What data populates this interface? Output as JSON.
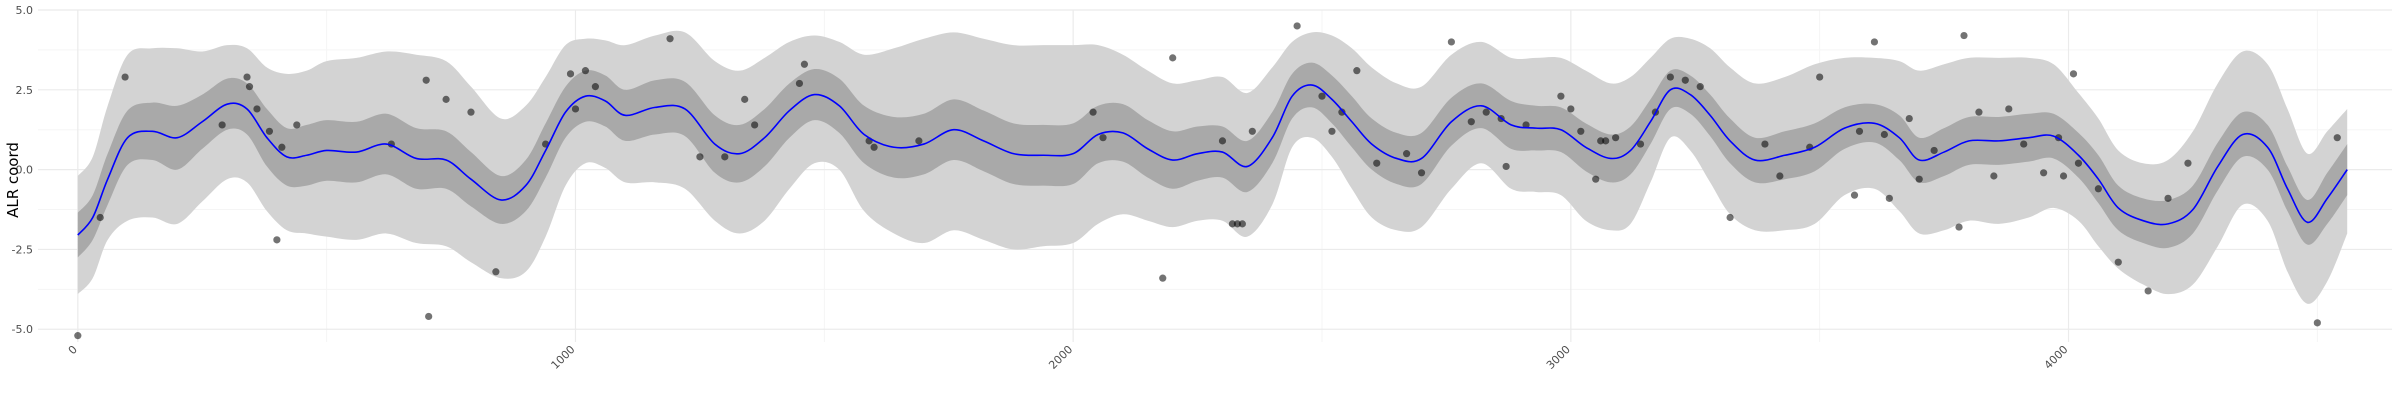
{
  "chart_data": {
    "type": "line",
    "title": "",
    "xlabel": "",
    "ylabel": "ALR coord",
    "xlim": [
      -80,
      4650
    ],
    "ylim": [
      -5.4,
      5.0
    ],
    "x_ticks": [
      0,
      1000,
      2000,
      3000,
      4000
    ],
    "x_tick_labels": [
      "0",
      "1000",
      "2000",
      "3000",
      "4000"
    ],
    "y_ticks": [
      -5.0,
      -2.5,
      0.0,
      2.5,
      5.0
    ],
    "y_tick_labels": [
      "-5.0",
      "-2.5",
      "0.0",
      "2.5",
      "5.0"
    ],
    "grid": true,
    "legend": "none",
    "colors": {
      "mean_line": "#0000ff",
      "outer_band": "#d3d3d3",
      "inner_band": "#a9a9a9",
      "points": "#000000",
      "grid_major": "#ebebeb",
      "grid_minor": "#f5f5f5"
    },
    "series": [
      {
        "name": "mean",
        "x": [
          0,
          30,
          60,
          100,
          150,
          200,
          250,
          300,
          340,
          380,
          420,
          460,
          500,
          560,
          620,
          680,
          740,
          790,
          850,
          900,
          940,
          980,
          1020,
          1060,
          1100,
          1160,
          1220,
          1280,
          1330,
          1380,
          1430,
          1480,
          1530,
          1580,
          1640,
          1700,
          1760,
          1820,
          1880,
          1940,
          2000,
          2050,
          2100,
          2150,
          2200,
          2250,
          2300,
          2350,
          2400,
          2440,
          2480,
          2520,
          2560,
          2600,
          2650,
          2700,
          2760,
          2820,
          2880,
          2930,
          2980,
          3030,
          3080,
          3120,
          3160,
          3200,
          3240,
          3280,
          3320,
          3370,
          3430,
          3490,
          3550,
          3610,
          3660,
          3700,
          3750,
          3800,
          3860,
          3920,
          3970,
          4020,
          4060,
          4100,
          4150,
          4200,
          4250,
          4300,
          4350,
          4400,
          4440,
          4480,
          4520,
          4560
        ],
        "values": [
          -2.05,
          -1.5,
          -0.3,
          1.0,
          1.2,
          1.0,
          1.5,
          2.05,
          1.9,
          1.0,
          0.4,
          0.45,
          0.6,
          0.55,
          0.8,
          0.35,
          0.3,
          -0.3,
          -0.95,
          -0.5,
          0.6,
          1.8,
          2.3,
          2.15,
          1.7,
          1.95,
          1.9,
          0.8,
          0.5,
          1.0,
          1.85,
          2.35,
          2.0,
          1.1,
          0.7,
          0.8,
          1.25,
          0.9,
          0.5,
          0.45,
          0.5,
          1.1,
          1.15,
          0.65,
          0.3,
          0.5,
          0.55,
          0.1,
          1.0,
          2.3,
          2.65,
          2.2,
          1.5,
          0.8,
          0.35,
          0.35,
          1.5,
          2.0,
          1.4,
          1.3,
          1.25,
          0.7,
          0.35,
          0.6,
          1.5,
          2.5,
          2.35,
          1.7,
          0.9,
          0.3,
          0.45,
          0.7,
          1.3,
          1.45,
          1.0,
          0.3,
          0.55,
          0.9,
          0.9,
          1.0,
          1.05,
          0.45,
          -0.3,
          -1.2,
          -1.6,
          -1.7,
          -1.25,
          0.1,
          1.1,
          0.7,
          -0.6,
          -1.65,
          -0.9,
          0.0
        ]
      },
      {
        "name": "inner_band_upper",
        "x": [
          0,
          30,
          60,
          100,
          150,
          200,
          250,
          300,
          340,
          380,
          420,
          460,
          500,
          560,
          620,
          680,
          740,
          790,
          850,
          900,
          940,
          980,
          1020,
          1060,
          1100,
          1160,
          1220,
          1280,
          1330,
          1380,
          1430,
          1480,
          1530,
          1580,
          1640,
          1700,
          1760,
          1820,
          1880,
          1940,
          2000,
          2050,
          2100,
          2150,
          2200,
          2250,
          2300,
          2350,
          2400,
          2440,
          2480,
          2520,
          2560,
          2600,
          2650,
          2700,
          2760,
          2820,
          2880,
          2930,
          2980,
          3030,
          3080,
          3120,
          3160,
          3200,
          3240,
          3280,
          3320,
          3370,
          3430,
          3490,
          3550,
          3610,
          3660,
          3700,
          3750,
          3800,
          3860,
          3920,
          3970,
          4020,
          4060,
          4100,
          4150,
          4200,
          4250,
          4300,
          4350,
          4400,
          4440,
          4480,
          4520,
          4560
        ],
        "values": [
          -1.35,
          -0.8,
          0.5,
          1.85,
          2.1,
          2.0,
          2.35,
          2.85,
          2.7,
          1.9,
          1.3,
          1.4,
          1.55,
          1.5,
          1.75,
          1.3,
          1.2,
          0.55,
          -0.2,
          0.3,
          1.45,
          2.6,
          3.1,
          2.95,
          2.5,
          2.8,
          2.75,
          1.7,
          1.4,
          1.9,
          2.7,
          3.15,
          2.85,
          2.0,
          1.65,
          1.75,
          2.2,
          1.85,
          1.45,
          1.4,
          1.45,
          2.0,
          2.05,
          1.55,
          1.2,
          1.35,
          1.35,
          0.9,
          1.8,
          3.0,
          3.35,
          2.95,
          2.3,
          1.6,
          1.15,
          1.15,
          2.25,
          2.7,
          2.15,
          2.0,
          1.95,
          1.45,
          1.1,
          1.35,
          2.2,
          3.1,
          2.95,
          2.35,
          1.6,
          1.0,
          1.2,
          1.45,
          1.95,
          2.05,
          1.7,
          1.0,
          1.3,
          1.65,
          1.65,
          1.75,
          1.75,
          1.15,
          0.45,
          -0.5,
          -0.9,
          -0.95,
          -0.5,
          0.85,
          1.8,
          1.4,
          0.1,
          -0.95,
          -0.1,
          0.8
        ]
      },
      {
        "name": "inner_band_lower",
        "x": [
          0,
          30,
          60,
          100,
          150,
          200,
          250,
          300,
          340,
          380,
          420,
          460,
          500,
          560,
          620,
          680,
          740,
          790,
          850,
          900,
          940,
          980,
          1020,
          1060,
          1100,
          1160,
          1220,
          1280,
          1330,
          1380,
          1430,
          1480,
          1530,
          1580,
          1640,
          1700,
          1760,
          1820,
          1880,
          1940,
          2000,
          2050,
          2100,
          2150,
          2200,
          2250,
          2300,
          2350,
          2400,
          2440,
          2480,
          2520,
          2560,
          2600,
          2650,
          2700,
          2760,
          2820,
          2880,
          2930,
          2980,
          3030,
          3080,
          3120,
          3160,
          3200,
          3240,
          3280,
          3320,
          3370,
          3430,
          3490,
          3550,
          3610,
          3660,
          3700,
          3750,
          3800,
          3860,
          3920,
          3970,
          4020,
          4060,
          4100,
          4150,
          4200,
          4250,
          4300,
          4350,
          4400,
          4440,
          4480,
          4520,
          4560
        ],
        "values": [
          -2.75,
          -2.2,
          -1.1,
          0.15,
          0.3,
          0.0,
          0.65,
          1.25,
          1.1,
          0.1,
          -0.5,
          -0.5,
          -0.35,
          -0.4,
          -0.15,
          -0.6,
          -0.6,
          -1.15,
          -1.7,
          -1.3,
          -0.25,
          1.0,
          1.5,
          1.35,
          0.9,
          1.1,
          1.05,
          -0.1,
          -0.4,
          0.1,
          1.0,
          1.55,
          1.15,
          0.2,
          -0.25,
          -0.15,
          0.3,
          -0.05,
          -0.45,
          -0.5,
          -0.45,
          0.2,
          0.25,
          -0.25,
          -0.6,
          -0.35,
          -0.25,
          -0.7,
          0.2,
          1.6,
          1.95,
          1.45,
          0.7,
          0.0,
          -0.45,
          -0.45,
          0.75,
          1.3,
          0.65,
          0.6,
          0.55,
          -0.05,
          -0.4,
          -0.15,
          0.8,
          1.9,
          1.75,
          1.05,
          0.2,
          -0.4,
          -0.3,
          -0.05,
          0.65,
          0.85,
          0.3,
          -0.4,
          -0.2,
          0.15,
          0.15,
          0.25,
          0.35,
          -0.25,
          -1.05,
          -1.9,
          -2.3,
          -2.45,
          -2.0,
          -0.65,
          0.4,
          0.0,
          -1.3,
          -2.35,
          -1.7,
          -0.8
        ]
      },
      {
        "name": "outer_band_upper",
        "x": [
          0,
          30,
          60,
          100,
          150,
          200,
          250,
          300,
          340,
          380,
          420,
          460,
          500,
          560,
          620,
          680,
          740,
          790,
          850,
          900,
          940,
          980,
          1020,
          1060,
          1100,
          1160,
          1220,
          1280,
          1330,
          1380,
          1430,
          1480,
          1530,
          1580,
          1640,
          1700,
          1760,
          1820,
          1880,
          1940,
          2000,
          2050,
          2100,
          2150,
          2200,
          2250,
          2300,
          2350,
          2400,
          2440,
          2480,
          2520,
          2560,
          2600,
          2650,
          2700,
          2760,
          2820,
          2880,
          2930,
          2980,
          3030,
          3080,
          3120,
          3160,
          3200,
          3240,
          3280,
          3320,
          3370,
          3430,
          3490,
          3550,
          3610,
          3660,
          3700,
          3750,
          3800,
          3860,
          3920,
          3970,
          4020,
          4060,
          4100,
          4150,
          4200,
          4250,
          4300,
          4350,
          4400,
          4440,
          4480,
          4520,
          4560
        ],
        "values": [
          -0.2,
          0.4,
          2.0,
          3.6,
          3.8,
          3.8,
          3.7,
          3.9,
          3.8,
          3.2,
          3.0,
          3.1,
          3.4,
          3.5,
          3.7,
          3.6,
          3.4,
          2.6,
          1.6,
          2.0,
          2.9,
          3.9,
          4.1,
          4.05,
          3.9,
          4.2,
          4.3,
          3.4,
          3.1,
          3.5,
          4.0,
          4.2,
          4.0,
          3.6,
          3.8,
          4.1,
          4.3,
          4.1,
          3.9,
          3.9,
          3.9,
          3.9,
          3.6,
          3.1,
          2.7,
          2.8,
          2.9,
          2.4,
          3.2,
          4.0,
          4.3,
          4.2,
          3.8,
          3.2,
          2.7,
          2.6,
          3.6,
          4.0,
          3.5,
          3.5,
          3.5,
          3.1,
          2.7,
          2.9,
          3.5,
          4.1,
          4.1,
          3.8,
          3.2,
          2.7,
          2.9,
          3.3,
          3.5,
          3.5,
          3.4,
          3.1,
          3.3,
          3.5,
          3.5,
          3.5,
          3.3,
          2.4,
          1.6,
          0.6,
          0.2,
          0.3,
          1.2,
          2.7,
          3.7,
          3.3,
          1.9,
          0.5,
          1.2,
          1.9
        ]
      },
      {
        "name": "outer_band_lower",
        "x": [
          0,
          30,
          60,
          100,
          150,
          200,
          250,
          300,
          340,
          380,
          420,
          460,
          500,
          560,
          620,
          680,
          740,
          790,
          850,
          900,
          940,
          980,
          1020,
          1060,
          1100,
          1160,
          1220,
          1280,
          1330,
          1380,
          1430,
          1480,
          1530,
          1580,
          1640,
          1700,
          1760,
          1820,
          1880,
          1940,
          2000,
          2050,
          2100,
          2150,
          2200,
          2250,
          2300,
          2350,
          2400,
          2440,
          2480,
          2520,
          2560,
          2600,
          2650,
          2700,
          2760,
          2820,
          2880,
          2930,
          2980,
          3030,
          3080,
          3120,
          3160,
          3200,
          3240,
          3280,
          3320,
          3370,
          3430,
          3490,
          3550,
          3610,
          3660,
          3700,
          3750,
          3800,
          3860,
          3920,
          3970,
          4020,
          4060,
          4100,
          4150,
          4200,
          4250,
          4300,
          4350,
          4400,
          4440,
          4480,
          4520,
          4560
        ],
        "values": [
          -3.9,
          -3.4,
          -2.2,
          -1.6,
          -1.5,
          -1.7,
          -1.0,
          -0.3,
          -0.4,
          -1.3,
          -1.9,
          -2.0,
          -2.1,
          -2.2,
          -2.0,
          -2.3,
          -2.4,
          -2.9,
          -3.4,
          -3.2,
          -2.1,
          -0.5,
          0.2,
          0.05,
          -0.4,
          -0.4,
          -0.6,
          -1.6,
          -2.0,
          -1.6,
          -0.6,
          0.2,
          0.0,
          -1.3,
          -2.0,
          -2.3,
          -1.9,
          -2.2,
          -2.5,
          -2.4,
          -2.3,
          -1.7,
          -1.4,
          -1.6,
          -1.8,
          -1.6,
          -1.6,
          -2.1,
          -1.1,
          0.7,
          1.0,
          0.4,
          -0.6,
          -1.5,
          -1.9,
          -1.8,
          -0.6,
          0.2,
          -0.6,
          -0.7,
          -0.8,
          -1.6,
          -1.9,
          -1.7,
          -0.4,
          1.0,
          0.6,
          -0.4,
          -1.4,
          -1.9,
          -1.9,
          -1.7,
          -0.8,
          -0.6,
          -1.3,
          -2.0,
          -1.9,
          -1.6,
          -1.7,
          -1.5,
          -1.2,
          -1.6,
          -2.4,
          -3.1,
          -3.6,
          -3.9,
          -3.6,
          -2.4,
          -1.1,
          -1.6,
          -3.2,
          -4.2,
          -3.5,
          -2.0
        ]
      },
      {
        "name": "observations",
        "x": [
          0,
          45,
          95,
          290,
          340,
          345,
          360,
          385,
          400,
          410,
          440,
          630,
          700,
          705,
          740,
          790,
          840,
          940,
          990,
          1000,
          1020,
          1040,
          1190,
          1250,
          1300,
          1340,
          1360,
          1450,
          1460,
          1590,
          1600,
          1690,
          2040,
          2060,
          2180,
          2200,
          2300,
          2320,
          2330,
          2340,
          2360,
          2450,
          2500,
          2520,
          2540,
          2570,
          2610,
          2670,
          2700,
          2760,
          2800,
          2830,
          2860,
          2870,
          2910,
          2980,
          3000,
          3020,
          3050,
          3060,
          3070,
          3090,
          3140,
          3170,
          3200,
          3230,
          3260,
          3320,
          3390,
          3420,
          3480,
          3500,
          3570,
          3580,
          3610,
          3630,
          3640,
          3680,
          3700,
          3730,
          3780,
          3790,
          3820,
          3850,
          3880,
          3910,
          3950,
          3980,
          3990,
          4010,
          4020,
          4060,
          4100,
          4160,
          4200,
          4240,
          4500,
          4540
        ],
        "values": [
          -5.2,
          -1.5,
          2.9,
          1.4,
          2.9,
          2.6,
          1.9,
          1.2,
          -2.2,
          0.7,
          1.4,
          0.8,
          2.8,
          -4.6,
          2.2,
          1.8,
          -3.2,
          0.8,
          3.0,
          1.9,
          3.1,
          2.6,
          4.1,
          0.4,
          0.4,
          2.2,
          1.4,
          2.7,
          3.3,
          0.9,
          0.7,
          0.9,
          1.8,
          1.0,
          -3.4,
          3.5,
          0.9,
          -1.7,
          -1.7,
          -1.7,
          1.2,
          4.5,
          2.3,
          1.2,
          1.8,
          3.1,
          0.2,
          0.5,
          -0.1,
          4.0,
          1.5,
          1.8,
          1.6,
          0.1,
          1.4,
          2.3,
          1.9,
          1.2,
          -0.3,
          0.9,
          0.9,
          1.0,
          0.8,
          1.8,
          2.9,
          2.8,
          2.6,
          -1.5,
          0.8,
          -0.2,
          0.7,
          2.9,
          -0.8,
          1.2,
          4.0,
          1.1,
          -0.9,
          1.6,
          -0.3,
          0.6,
          -1.8,
          4.2,
          1.8,
          -0.2,
          1.9,
          0.8,
          -0.1,
          1.0,
          -0.2,
          3.0,
          0.2,
          -0.6,
          -2.9,
          -3.8,
          -0.9,
          0.2,
          -4.8,
          1.0
        ]
      }
    ]
  }
}
